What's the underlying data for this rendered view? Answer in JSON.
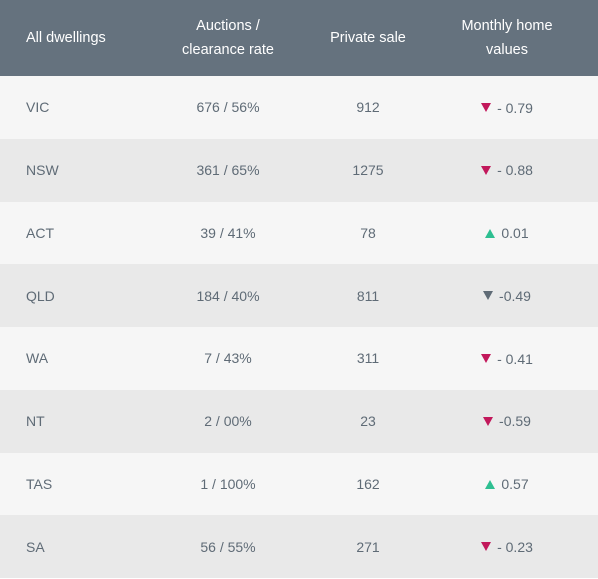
{
  "table": {
    "headers": {
      "region": "All dwellings",
      "auctions_line1": "Auctions /",
      "auctions_line2": "clearance rate",
      "private_sale": "Private sale",
      "monthly_line1": "Monthly home",
      "monthly_line2": "values"
    },
    "colors": {
      "header_bg": "#65727e",
      "down_accent": "#c2185b",
      "up_accent": "#2ebf91",
      "neutral_down": "#5f6b76"
    },
    "rows": [
      {
        "region": "VIC",
        "auctions": "676 / 56%",
        "private_sale": "912",
        "direction": "down",
        "arrow_icon": "triangle-down-icon",
        "arrow_color": "#c2185b",
        "change": "- 0.79"
      },
      {
        "region": "NSW",
        "auctions": "361 / 65%",
        "private_sale": "1275",
        "direction": "down",
        "arrow_icon": "triangle-down-icon",
        "arrow_color": "#c2185b",
        "change": "- 0.88"
      },
      {
        "region": "ACT",
        "auctions": "39 / 41%",
        "private_sale": "78",
        "direction": "up",
        "arrow_icon": "triangle-up-icon",
        "arrow_color": "#2ebf91",
        "change": "0.01"
      },
      {
        "region": "QLD",
        "auctions": "184 / 40%",
        "private_sale": "811",
        "direction": "down",
        "arrow_icon": "triangle-down-icon",
        "arrow_color": "#5f6b76",
        "change": "-0.49"
      },
      {
        "region": "WA",
        "auctions": "7 / 43%",
        "private_sale": "311",
        "direction": "down",
        "arrow_icon": "triangle-down-icon",
        "arrow_color": "#c2185b",
        "change": "- 0.41"
      },
      {
        "region": "NT",
        "auctions": "2 / 00%",
        "private_sale": "23",
        "direction": "down",
        "arrow_icon": "triangle-down-icon",
        "arrow_color": "#c2185b",
        "change": "-0.59"
      },
      {
        "region": "TAS",
        "auctions": "1 / 100%",
        "private_sale": "162",
        "direction": "up",
        "arrow_icon": "triangle-up-icon",
        "arrow_color": "#2ebf91",
        "change": "0.57"
      },
      {
        "region": "SA",
        "auctions": "56 / 55%",
        "private_sale": "271",
        "direction": "down",
        "arrow_icon": "triangle-down-icon",
        "arrow_color": "#c2185b",
        "change": "- 0.23"
      }
    ]
  }
}
